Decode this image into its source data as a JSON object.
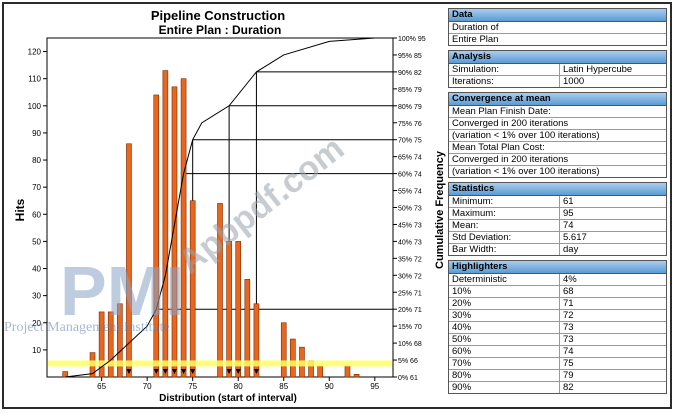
{
  "chart_data": {
    "type": "bar",
    "title": "Pipeline Construction",
    "subtitle": "Entire Plan : Duration",
    "xlabel": "Distribution (start of interval)",
    "ylabel": "Hits",
    "y2label": "Cumulative Frequency",
    "xlim": [
      59,
      97
    ],
    "ylim": [
      0,
      125
    ],
    "xticks": [
      65,
      70,
      75,
      80,
      85,
      90,
      95
    ],
    "yticks": [
      10,
      20,
      30,
      40,
      50,
      60,
      70,
      80,
      90,
      100,
      110,
      120
    ],
    "bar_color": "#e8661e",
    "bars": [
      {
        "x": 61,
        "hits": 2
      },
      {
        "x": 64,
        "hits": 9
      },
      {
        "x": 65,
        "hits": 24
      },
      {
        "x": 66,
        "hits": 24
      },
      {
        "x": 67,
        "hits": 27
      },
      {
        "x": 68,
        "hits": 86
      },
      {
        "x": 71,
        "hits": 104
      },
      {
        "x": 72,
        "hits": 113
      },
      {
        "x": 73,
        "hits": 107
      },
      {
        "x": 74,
        "hits": 110
      },
      {
        "x": 75,
        "hits": 65
      },
      {
        "x": 78,
        "hits": 64
      },
      {
        "x": 79,
        "hits": 50
      },
      {
        "x": 80,
        "hits": 50
      },
      {
        "x": 81,
        "hits": 36
      },
      {
        "x": 82,
        "hits": 27
      },
      {
        "x": 85,
        "hits": 20
      },
      {
        "x": 86,
        "hits": 14
      },
      {
        "x": 87,
        "hits": 11
      },
      {
        "x": 88,
        "hits": 6
      },
      {
        "x": 89,
        "hits": 4
      },
      {
        "x": 92,
        "hits": 4
      },
      {
        "x": 93,
        "hits": 1
      }
    ],
    "cumulative_axis": [
      {
        "pct": "0%",
        "val": "61"
      },
      {
        "pct": "5%",
        "val": "66"
      },
      {
        "pct": "10%",
        "val": "68"
      },
      {
        "pct": "15%",
        "val": "70"
      },
      {
        "pct": "20%",
        "val": "71"
      },
      {
        "pct": "25%",
        "val": "71"
      },
      {
        "pct": "30%",
        "val": "72"
      },
      {
        "pct": "35%",
        "val": "72"
      },
      {
        "pct": "40%",
        "val": "73"
      },
      {
        "pct": "45%",
        "val": "73"
      },
      {
        "pct": "50%",
        "val": "73"
      },
      {
        "pct": "55%",
        "val": "74"
      },
      {
        "pct": "60%",
        "val": "74"
      },
      {
        "pct": "65%",
        "val": "74"
      },
      {
        "pct": "70%",
        "val": "75"
      },
      {
        "pct": "75%",
        "val": "76"
      },
      {
        "pct": "80%",
        "val": "79"
      },
      {
        "pct": "85%",
        "val": "79"
      },
      {
        "pct": "90%",
        "val": "82"
      },
      {
        "pct": "95%",
        "val": "85"
      },
      {
        "pct": "100%",
        "val": "95"
      }
    ],
    "cumulative_curve": [
      {
        "x": 61,
        "pct": 0
      },
      {
        "x": 64,
        "pct": 1
      },
      {
        "x": 66,
        "pct": 5
      },
      {
        "x": 68,
        "pct": 10
      },
      {
        "x": 70,
        "pct": 15
      },
      {
        "x": 71,
        "pct": 20
      },
      {
        "x": 72,
        "pct": 30
      },
      {
        "x": 73,
        "pct": 45
      },
      {
        "x": 74,
        "pct": 60
      },
      {
        "x": 75,
        "pct": 70
      },
      {
        "x": 76,
        "pct": 75
      },
      {
        "x": 79,
        "pct": 80
      },
      {
        "x": 82,
        "pct": 90
      },
      {
        "x": 85,
        "pct": 95
      },
      {
        "x": 90,
        "pct": 99
      },
      {
        "x": 95,
        "pct": 100
      }
    ],
    "percentile_guides": [
      {
        "pct": 20,
        "x": 71
      },
      {
        "pct": 60,
        "x": 74
      },
      {
        "pct": 70,
        "x": 75
      },
      {
        "pct": 80,
        "x": 79
      },
      {
        "pct": 90,
        "x": 82
      }
    ],
    "markers_x": [
      68,
      71,
      72,
      73,
      74,
      75,
      79,
      80,
      82
    ],
    "deterministic_line": {
      "pct": 4,
      "color": "#ffff66"
    }
  },
  "watermark": {
    "big": "PMI",
    "text": "Project Management Institute",
    "site": "Apbpdf.com"
  },
  "panel": {
    "data": {
      "header": "Data",
      "line1": "Duration of",
      "line2": "Entire Plan"
    },
    "analysis": {
      "header": "Analysis",
      "rows": [
        {
          "label": "Simulation:",
          "value": "Latin Hypercube"
        },
        {
          "label": "Iterations:",
          "value": "1000"
        }
      ]
    },
    "convergence": {
      "header": "Convergence at mean",
      "lines": [
        "Mean Plan Finish Date:",
        "Converged in 200 iterations",
        "(variation < 1% over 100 iterations)",
        "Mean Total Plan Cost:",
        "Converged in 200 iterations",
        "(variation < 1% over 100 iterations)"
      ]
    },
    "statistics": {
      "header": "Statistics",
      "rows": [
        {
          "label": "Minimum:",
          "value": "61"
        },
        {
          "label": "Maximum:",
          "value": "95"
        },
        {
          "label": "Mean:",
          "value": "74"
        },
        {
          "label": "Std Deviation:",
          "value": "5.617"
        },
        {
          "label": "Bar Width:",
          "value": "day"
        }
      ]
    },
    "highlighters": {
      "header": "Highlighters",
      "rows": [
        {
          "label": "Deterministic",
          "value": "4%"
        },
        {
          "label": "10%",
          "value": "68"
        },
        {
          "label": "20%",
          "value": "71"
        },
        {
          "label": "30%",
          "value": "72"
        },
        {
          "label": "40%",
          "value": "73"
        },
        {
          "label": "50%",
          "value": "73"
        },
        {
          "label": "60%",
          "value": "74"
        },
        {
          "label": "70%",
          "value": "75"
        },
        {
          "label": "80%",
          "value": "79"
        },
        {
          "label": "90%",
          "value": "82"
        }
      ]
    }
  }
}
